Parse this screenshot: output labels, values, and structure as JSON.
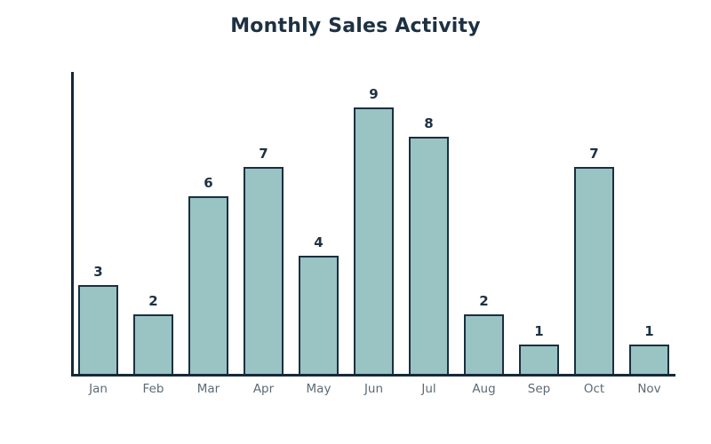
{
  "title": "Monthly Sales Activity",
  "colors": {
    "background": "#ffffff",
    "bar_fill": "#9ac3c4",
    "bar_border": "#1b2f40",
    "axis": "#16293a",
    "title_text": "#1d3142",
    "value_label_text": "#1d3142",
    "month_label_text": "#5d6a75"
  },
  "chart_data": {
    "type": "bar",
    "title": "Monthly Sales Activity",
    "categories": [
      "Jan",
      "Feb",
      "Mar",
      "Apr",
      "May",
      "Jun",
      "Jul",
      "Aug",
      "Sep",
      "Oct",
      "Nov"
    ],
    "values": [
      3,
      2,
      6,
      7,
      4,
      9,
      8,
      2,
      1,
      7,
      1
    ],
    "xlabel": "",
    "ylabel": "",
    "ylim": [
      0,
      9
    ],
    "grid": false,
    "legend": null,
    "value_labels_shown": true,
    "axis_ticks_shown": false
  }
}
